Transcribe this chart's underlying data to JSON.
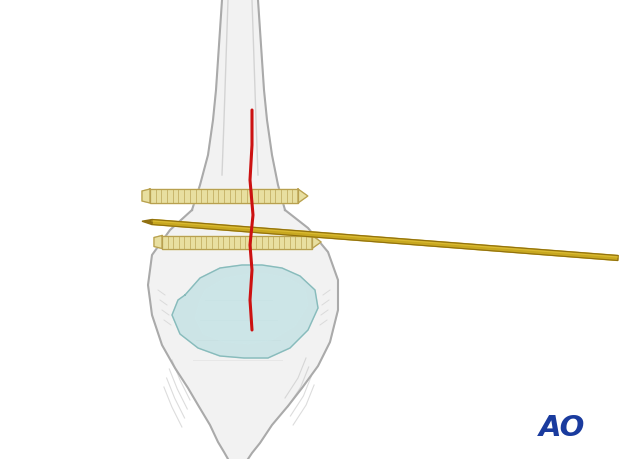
{
  "background_color": "#ffffff",
  "bone_outline_color": "#aaaaaa",
  "bone_fill_color": "#f2f2f2",
  "bone_fill_light": "#f8f8f8",
  "screw_color": "#e8dfa0",
  "screw_dark_color": "#b8a050",
  "kwire_color": "#c8a820",
  "kwire_dark": "#907010",
  "fracture_color": "#cc1111",
  "cartilage_color": "#b8dde0",
  "cartilage_outline": "#88bbbb",
  "ao_color": "#1a3b9e",
  "figsize": [
    6.2,
    4.59
  ],
  "dpi": 100
}
